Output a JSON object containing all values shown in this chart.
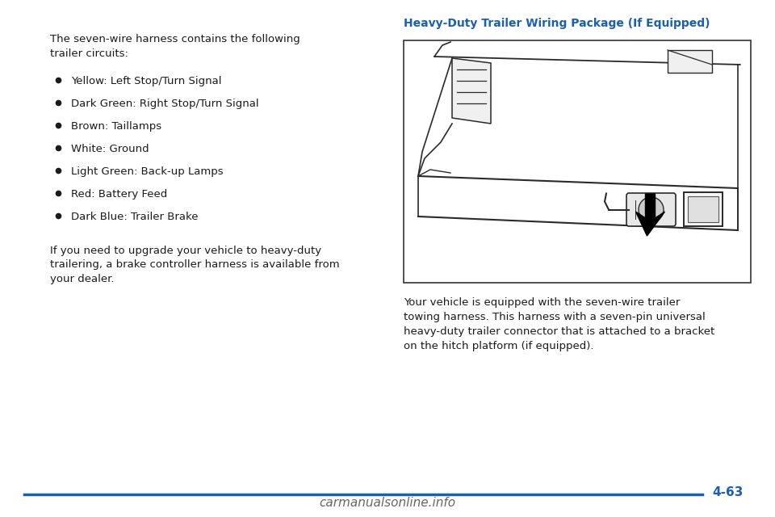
{
  "bg_color": "#ffffff",
  "text_color": "#1a1a1a",
  "blue_color": "#1a5fb4",
  "page_number": "4-63",
  "watermark": "carmanualsonline.info",
  "left_intro": "The seven-wire harness contains the following\ntrailer circuits:",
  "bullet_items": [
    "Yellow: Left Stop/Turn Signal",
    "Dark Green: Right Stop/Turn Signal",
    "Brown: Taillamps",
    "White: Ground",
    "Light Green: Back-up Lamps",
    "Red: Battery Feed",
    "Dark Blue: Trailer Brake"
  ],
  "left_footer": "If you need to upgrade your vehicle to heavy-duty\ntrailering, a brake controller harness is available from\nyour dealer.",
  "right_heading": "Heavy-Duty Trailer Wiring Package (If Equipped)",
  "right_body": "Your vehicle is equipped with the seven-wire trailer\ntowing harness. This harness with a seven-pin universal\nheavy-duty trailer connector that is attached to a bracket\non the hitch platform (if equipped).",
  "line_color": "#1a5fb4",
  "font_size_body": 9.5,
  "font_size_heading": 10.0,
  "font_size_page": 11,
  "font_size_watermark": 11,
  "draw_color": "#2a2a2a"
}
